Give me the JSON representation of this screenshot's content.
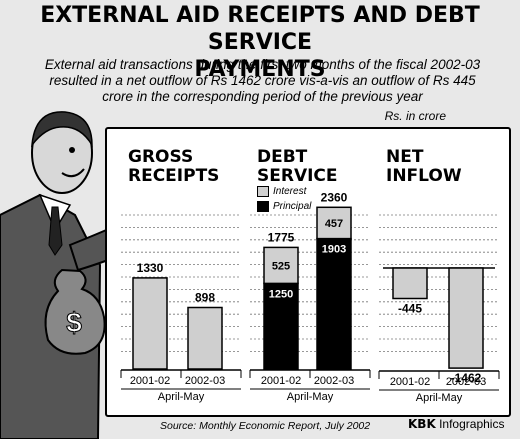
{
  "title_line1": "EXTERNAL AID RECEIPTS AND DEBT SERVICE",
  "title_line2": "PAYMENTS",
  "subtitle_lines": [
    "External aid transactions during the first two months of the fiscal 2002-03",
    "resulted in a net outflow of Rs 1462 crore vis-a-vis an outflow of Rs 445",
    "crore in the corresponding period of the previous year"
  ],
  "units": "Rs. in crore",
  "source": "Source: Monthly Economic Report, July 2002",
  "credit_bold": "KBK",
  "credit_rest": "Infographics",
  "colors": {
    "interest": "#d0d0d0",
    "principal": "#000000",
    "bar": "#cfcfcf",
    "board": "#ffffff"
  },
  "chart_data": [
    {
      "type": "bar",
      "title_lines": [
        "GROSS",
        "RECEIPTS"
      ],
      "categories": [
        "2001-02",
        "2002-03"
      ],
      "xlabel": "April-May",
      "values": [
        1330,
        898
      ],
      "data_labels": [
        "1330",
        "898"
      ]
    },
    {
      "type": "bar",
      "stacked": true,
      "title_lines": [
        "DEBT",
        "SERVICE"
      ],
      "categories": [
        "2001-02",
        "2002-03"
      ],
      "xlabel": "April-May",
      "legend": [
        "Interest",
        "Principal"
      ],
      "series": [
        {
          "name": "Principal",
          "values": [
            1250,
            1903
          ]
        },
        {
          "name": "Interest",
          "values": [
            525,
            457
          ]
        }
      ],
      "totals": [
        1775,
        2360
      ],
      "data_labels": {
        "principal": [
          "1250",
          "1903"
        ],
        "interest": [
          "525",
          "457"
        ],
        "totals": [
          "1775",
          "2360"
        ]
      }
    },
    {
      "type": "bar",
      "title_lines": [
        "NET",
        "INFLOW"
      ],
      "categories": [
        "2001-02",
        "2002-03"
      ],
      "xlabel": "April-May",
      "values": [
        -445,
        -1462
      ],
      "data_labels": [
        "-445",
        "-1462"
      ]
    }
  ]
}
